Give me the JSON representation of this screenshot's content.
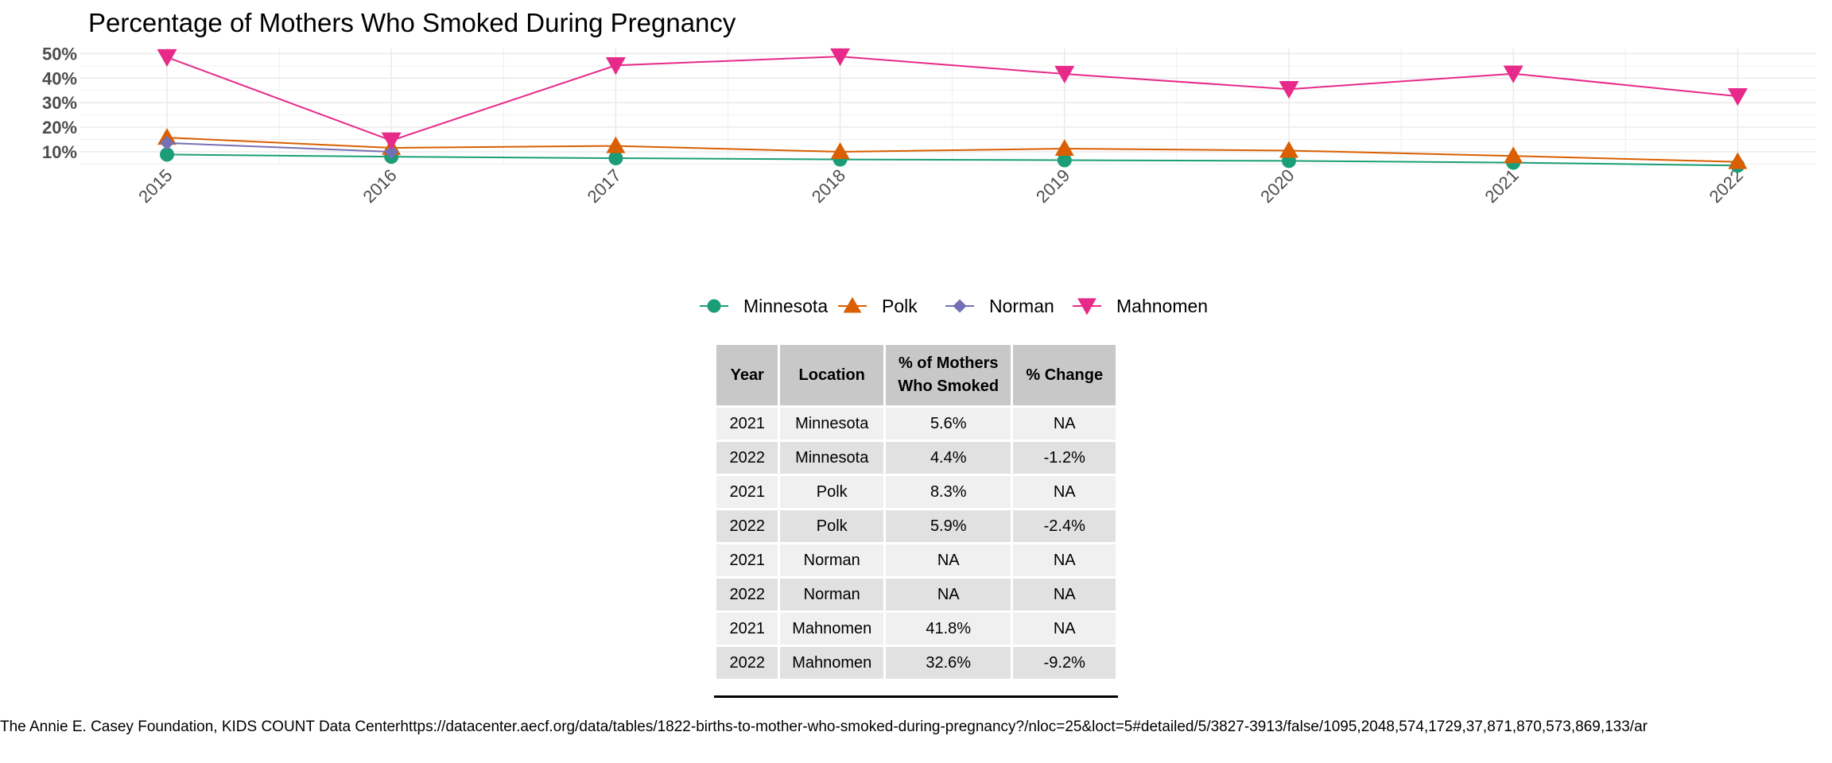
{
  "chart_data": {
    "type": "line",
    "title": "Percentage of Mothers Who Smoked During Pregnancy",
    "xlabel": "",
    "ylabel": "",
    "x": [
      "2015",
      "2016",
      "2017",
      "2018",
      "2019",
      "2020",
      "2021",
      "2022"
    ],
    "yticks": [
      "10%",
      "20%",
      "30%",
      "40%",
      "50%"
    ],
    "ylim": [
      3,
      51
    ],
    "grid": true,
    "legend_position": "top-center",
    "series": [
      {
        "name": "Minnesota",
        "color": "#1b9e77",
        "marker": "circle",
        "values": [
          8.9,
          8.0,
          7.4,
          6.9,
          6.6,
          6.3,
          5.6,
          4.4
        ]
      },
      {
        "name": "Polk",
        "color": "#d95f02",
        "marker": "triangle-up",
        "values": [
          15.8,
          11.6,
          12.4,
          10.0,
          11.3,
          10.5,
          8.3,
          5.9
        ]
      },
      {
        "name": "Norman",
        "color": "#7570b3",
        "marker": "diamond",
        "values": [
          13.6,
          10.0,
          null,
          null,
          null,
          null,
          null,
          null
        ]
      },
      {
        "name": "Mahnomen",
        "color": "#e7298a",
        "marker": "triangle-down",
        "values": [
          48.5,
          14.6,
          45.2,
          48.8,
          41.7,
          35.5,
          41.8,
          32.6
        ]
      }
    ]
  },
  "table": {
    "headers": [
      "Year",
      "Location",
      "% of Mothers Who Smoked",
      "% Change"
    ],
    "header_lines": {
      "pct_line1": "% of Mothers",
      "pct_line2": "Who Smoked"
    },
    "rows": [
      [
        "2021",
        "Minnesota",
        "5.6%",
        "NA"
      ],
      [
        "2022",
        "Minnesota",
        "4.4%",
        "-1.2%"
      ],
      [
        "2021",
        "Polk",
        "8.3%",
        "NA"
      ],
      [
        "2022",
        "Polk",
        "5.9%",
        "-2.4%"
      ],
      [
        "2021",
        "Norman",
        "NA",
        "NA"
      ],
      [
        "2022",
        "Norman",
        "NA",
        "NA"
      ],
      [
        "2021",
        "Mahnomen",
        "41.8%",
        "NA"
      ],
      [
        "2022",
        "Mahnomen",
        "32.6%",
        "-9.2%"
      ]
    ]
  },
  "caption": "The Annie E. Casey Foundation, KIDS COUNT Data Centerhttps://datacenter.aecf.org/data/tables/1822-births-to-mother-who-smoked-during-pregnancy?/nloc=25&loct=5#detailed/5/3827-3913/false/1095,2048,574,1729,37,871,870,573,869,133/ar"
}
